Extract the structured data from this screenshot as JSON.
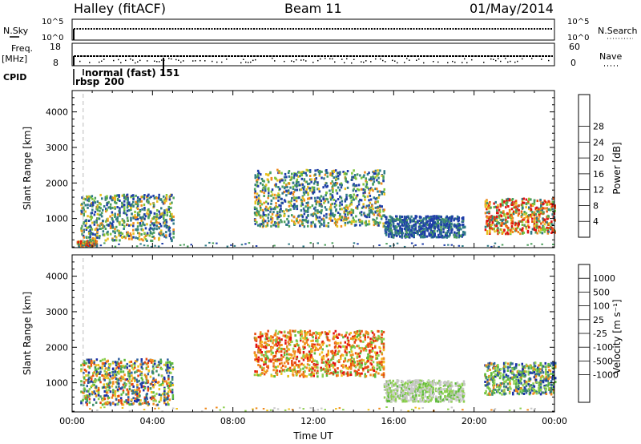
{
  "header": {
    "left": "Halley (fitACF)",
    "center": "Beam 11",
    "right": "01/May/2014"
  },
  "top_panels": {
    "nsky": {
      "label": "N.Sky",
      "ticks": [
        "10^5",
        "10^0"
      ]
    },
    "nsearch": {
      "label": "N.Search",
      "ticks": [
        "10^5",
        "10^0"
      ]
    },
    "freq": {
      "label_line1": "Freq.",
      "label_line2": "[MHz]",
      "ticks": [
        "18",
        "8"
      ]
    },
    "nave": {
      "label": "Nave",
      "ticks": [
        "60",
        "0"
      ]
    },
    "cpid": {
      "label": "CPID"
    },
    "annotations": [
      "normal (fast)",
      "151",
      "rbsp",
      "200"
    ]
  },
  "chart_data": [
    {
      "type": "heatmap",
      "title": "",
      "xlabel": "Time UT",
      "ylabel": "Slant Range [km]",
      "xlim": [
        "00:00",
        "24:00"
      ],
      "ylim": [
        180,
        4600
      ],
      "x_ticks": [
        "00:00",
        "04:00",
        "08:00",
        "12:00",
        "16:00",
        "20:00",
        "00:00"
      ],
      "y_ticks": [
        1000,
        2000,
        3000,
        4000
      ],
      "colorbar": {
        "label": "Power [dB]",
        "ticks": [
          4,
          8,
          12,
          16,
          20,
          24,
          28
        ],
        "colors": [
          "#0a1bff",
          "#1f3ea8",
          "#2f7a86",
          "#4b9e5c",
          "#7cc43a",
          "#e8c020",
          "#f08a1c",
          "#e84a10",
          "#e01010"
        ]
      },
      "features": [
        {
          "x_hours": [
            0.2,
            1.2
          ],
          "range_km": [
            250,
            400
          ],
          "level": "high"
        },
        {
          "x_hours": [
            0.4,
            5.0
          ],
          "range_km": [
            400,
            1700
          ],
          "level": "medium"
        },
        {
          "x_hours": [
            9.0,
            15.5
          ],
          "range_km": [
            800,
            2400
          ],
          "level": "medium"
        },
        {
          "x_hours": [
            15.5,
            19.5
          ],
          "range_km": [
            500,
            1100
          ],
          "level": "low"
        },
        {
          "x_hours": [
            20.5,
            24.0
          ],
          "range_km": [
            600,
            1600
          ],
          "level": "high"
        }
      ]
    },
    {
      "type": "heatmap",
      "title": "",
      "xlabel": "Time UT",
      "ylabel": "Slant Range [km]",
      "xlim": [
        "00:00",
        "24:00"
      ],
      "ylim": [
        180,
        4600
      ],
      "x_ticks": [
        "00:00",
        "04:00",
        "08:00",
        "12:00",
        "16:00",
        "20:00",
        "00:00"
      ],
      "y_ticks": [
        1000,
        2000,
        3000,
        4000
      ],
      "colorbar": {
        "label": "Velocity [m s⁻¹]",
        "ticks": [
          1000,
          500,
          100,
          25,
          -25,
          -100,
          -500,
          -1000
        ],
        "colors": [
          "#1a2fa8",
          "#2f5fa0",
          "#3f8e6a",
          "#5dba3a",
          "#8ed050",
          "#c8c8c8",
          "#f0c020",
          "#f08a1c",
          "#e84a10",
          "#e01010"
        ]
      },
      "features": [
        {
          "x_hours": [
            0.4,
            5.0
          ],
          "range_km": [
            400,
            1700
          ],
          "velocity": "mixed"
        },
        {
          "x_hours": [
            9.0,
            15.5
          ],
          "range_km": [
            1200,
            2500
          ],
          "velocity": "negative"
        },
        {
          "x_hours": [
            15.5,
            19.5
          ],
          "range_km": [
            500,
            1100
          ],
          "velocity": "near-zero"
        },
        {
          "x_hours": [
            20.5,
            24.0
          ],
          "range_km": [
            700,
            1600
          ],
          "velocity": "positive"
        }
      ]
    }
  ]
}
